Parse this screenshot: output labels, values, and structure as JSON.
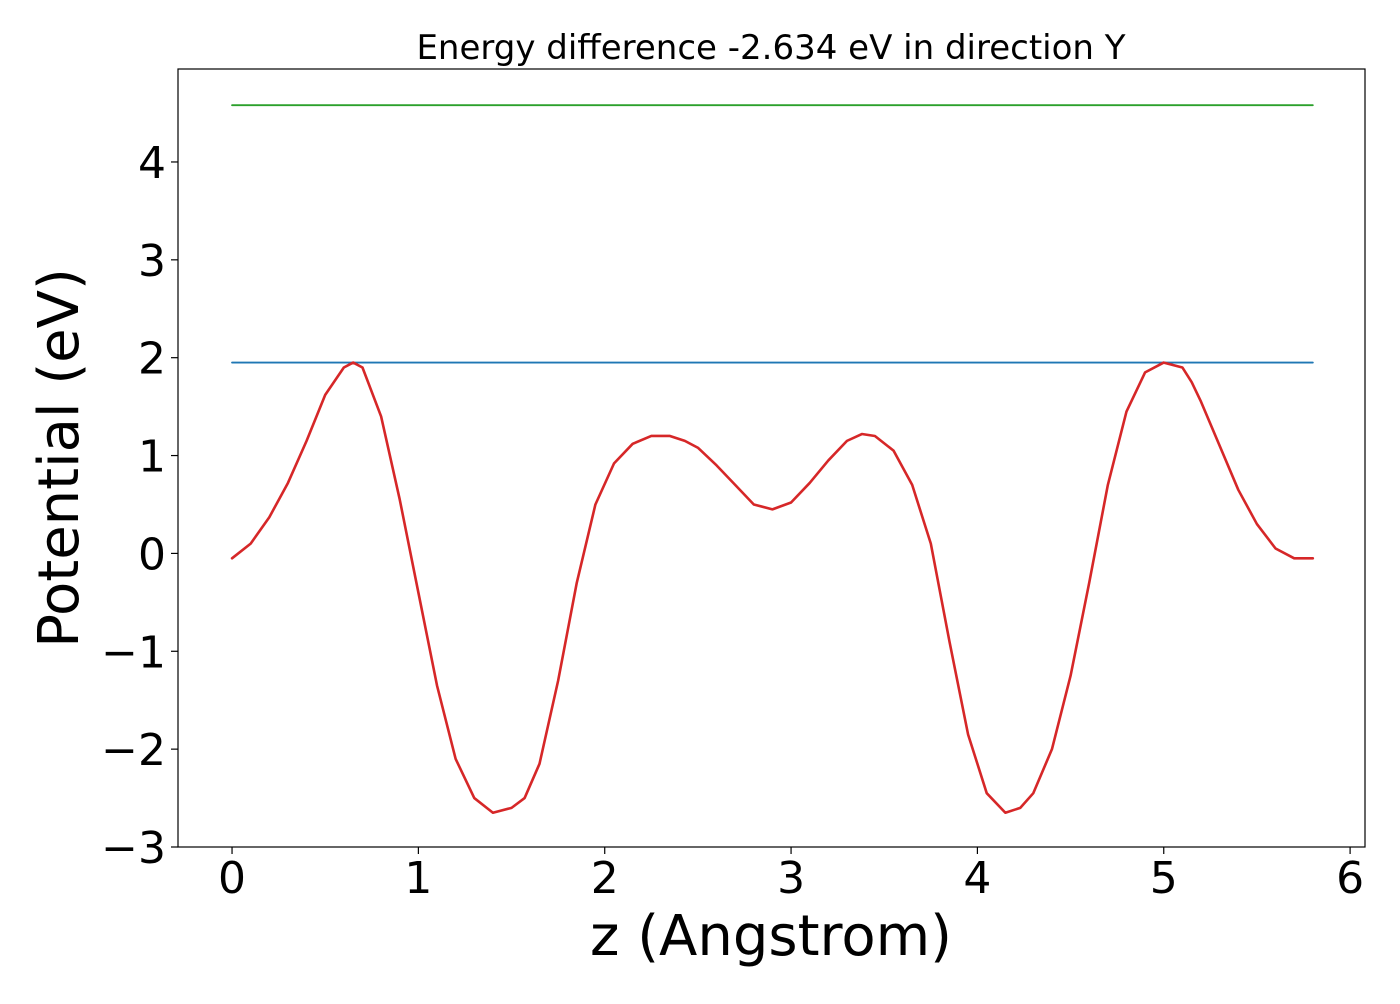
{
  "chart_data": {
    "type": "line",
    "title": "Energy difference -2.634 eV in direction Y",
    "xlabel": "z (Angstrom)",
    "ylabel": "Potential (eV)",
    "xlim": [
      -0.29,
      6.08
    ],
    "ylim": [
      -3.0,
      4.95
    ],
    "xticks": [
      0,
      1,
      2,
      3,
      4,
      5,
      6
    ],
    "xtick_labels": [
      "0",
      "1",
      "2",
      "3",
      "4",
      "5",
      "6"
    ],
    "yticks": [
      -3,
      -2,
      -1,
      0,
      1,
      2,
      3,
      4
    ],
    "ytick_labels": [
      "−3",
      "−2",
      "−1",
      "0",
      "1",
      "2",
      "3",
      "4"
    ],
    "grid": false,
    "series": [
      {
        "color": "#2ca02c",
        "kind": "horizontal",
        "x": [
          0.0,
          5.8
        ],
        "y": [
          4.58,
          4.58
        ]
      },
      {
        "color": "#1f77b4",
        "kind": "horizontal",
        "x": [
          0.0,
          5.8
        ],
        "y": [
          1.95,
          1.95
        ]
      },
      {
        "color": "#d62728",
        "kind": "curve",
        "x": [
          0.0,
          0.1,
          0.2,
          0.3,
          0.4,
          0.5,
          0.6,
          0.65,
          0.7,
          0.8,
          0.9,
          1.0,
          1.1,
          1.2,
          1.3,
          1.4,
          1.5,
          1.57,
          1.65,
          1.75,
          1.85,
          1.95,
          2.05,
          2.15,
          2.25,
          2.35,
          2.43,
          2.5,
          2.6,
          2.7,
          2.8,
          2.9,
          3.0,
          3.1,
          3.2,
          3.3,
          3.38,
          3.45,
          3.55,
          3.65,
          3.75,
          3.85,
          3.95,
          4.05,
          4.15,
          4.23,
          4.3,
          4.4,
          4.5,
          4.6,
          4.7,
          4.8,
          4.9,
          5.0,
          5.1,
          5.15,
          5.2,
          5.3,
          5.4,
          5.5,
          5.6,
          5.7,
          5.8
        ],
        "y": [
          -0.05,
          0.1,
          0.37,
          0.72,
          1.15,
          1.62,
          1.9,
          1.95,
          1.9,
          1.4,
          0.55,
          -0.4,
          -1.35,
          -2.1,
          -2.5,
          -2.65,
          -2.6,
          -2.5,
          -2.15,
          -1.3,
          -0.3,
          0.5,
          0.92,
          1.12,
          1.2,
          1.2,
          1.15,
          1.08,
          0.9,
          0.7,
          0.5,
          0.45,
          0.52,
          0.72,
          0.95,
          1.15,
          1.22,
          1.2,
          1.05,
          0.7,
          0.1,
          -0.9,
          -1.85,
          -2.45,
          -2.65,
          -2.6,
          -2.45,
          -2.0,
          -1.25,
          -0.3,
          0.7,
          1.45,
          1.85,
          1.95,
          1.9,
          1.75,
          1.55,
          1.1,
          0.65,
          0.3,
          0.05,
          -0.05,
          -0.05
        ]
      }
    ]
  }
}
